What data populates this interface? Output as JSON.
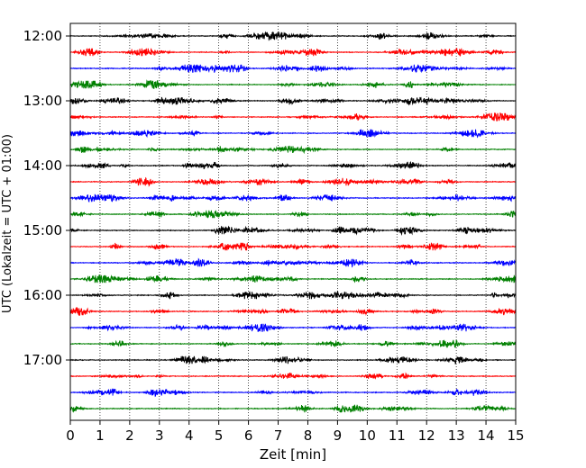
{
  "chart_data": {
    "type": "line",
    "title": "",
    "xlabel": "Zeit  [min]",
    "ylabel": "UTC (Lokalzeit = UTC + 01:00)",
    "xlim": [
      0,
      15
    ],
    "x_ticks": [
      "0",
      "1",
      "2",
      "3",
      "4",
      "5",
      "6",
      "7",
      "8",
      "9",
      "10",
      "11",
      "12",
      "13",
      "14",
      "15"
    ],
    "y_ticks": [
      "12:00",
      "13:00",
      "14:00",
      "15:00",
      "16:00",
      "17:00"
    ],
    "grid": "vertical dotted at each minute",
    "trace_interval_minutes": 15,
    "start_time": "12:00",
    "trace_colors": [
      "#000000",
      "#ff0000",
      "#0000ff",
      "#008000"
    ],
    "traces": [
      {
        "start": "12:00",
        "color": "#000000"
      },
      {
        "start": "12:15",
        "color": "#ff0000"
      },
      {
        "start": "12:30",
        "color": "#0000ff"
      },
      {
        "start": "12:45",
        "color": "#008000"
      },
      {
        "start": "13:00",
        "color": "#000000"
      },
      {
        "start": "13:15",
        "color": "#ff0000"
      },
      {
        "start": "13:30",
        "color": "#0000ff"
      },
      {
        "start": "13:45",
        "color": "#008000"
      },
      {
        "start": "14:00",
        "color": "#000000"
      },
      {
        "start": "14:15",
        "color": "#ff0000"
      },
      {
        "start": "14:30",
        "color": "#0000ff"
      },
      {
        "start": "14:45",
        "color": "#008000"
      },
      {
        "start": "15:00",
        "color": "#000000"
      },
      {
        "start": "15:15",
        "color": "#ff0000"
      },
      {
        "start": "15:30",
        "color": "#0000ff"
      },
      {
        "start": "15:45",
        "color": "#008000"
      },
      {
        "start": "16:00",
        "color": "#000000"
      },
      {
        "start": "16:15",
        "color": "#ff0000"
      },
      {
        "start": "16:30",
        "color": "#0000ff"
      },
      {
        "start": "16:45",
        "color": "#008000"
      },
      {
        "start": "17:00",
        "color": "#000000"
      },
      {
        "start": "17:15",
        "color": "#ff0000"
      },
      {
        "start": "17:30",
        "color": "#0000ff"
      },
      {
        "start": "17:45",
        "color": "#008000"
      }
    ]
  }
}
